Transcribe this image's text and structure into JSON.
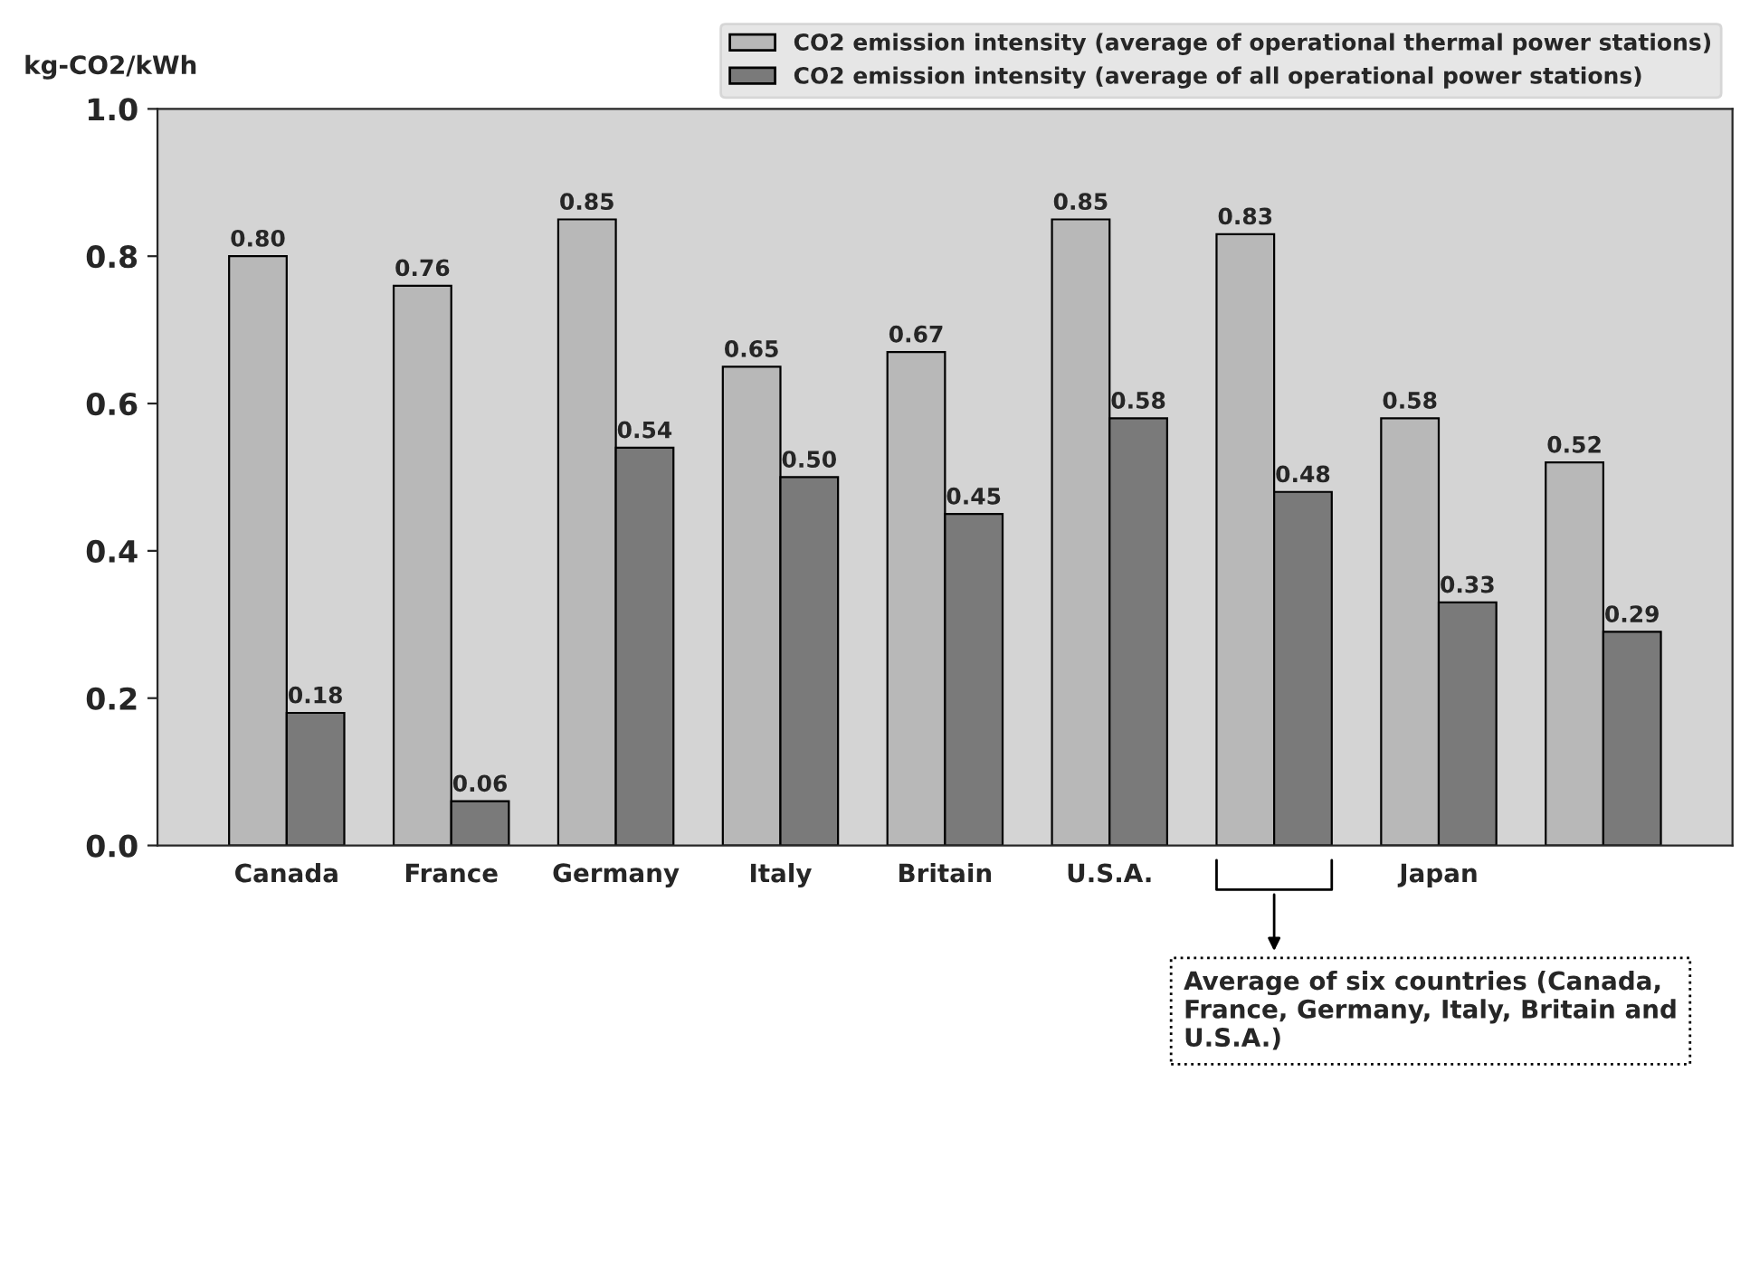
{
  "chart_data": {
    "type": "bar",
    "ylabel": "kg-CO2/kWh",
    "categories": [
      "Canada",
      "France",
      "Germany",
      "Italy",
      "Britain",
      "U.S.A.",
      null,
      "Japan",
      null
    ],
    "series": [
      {
        "name": "CO2 emission intensity (average of operational thermal power stations)",
        "color": "#b8b8b8",
        "values": [
          0.8,
          0.76,
          0.85,
          0.65,
          0.67,
          0.85,
          0.83,
          0.58,
          0.52
        ],
        "value_labels": [
          "0.80",
          "0.76",
          "0.85",
          "0.65",
          "0.67",
          "0.85",
          "0.83",
          "0.58",
          "0.52"
        ]
      },
      {
        "name": "CO2 emission intensity (average of all operational power stations)",
        "color": "#7a7a7a",
        "values": [
          0.18,
          0.06,
          0.54,
          0.5,
          0.45,
          0.58,
          0.48,
          0.33,
          0.29
        ],
        "value_labels": [
          "0.18",
          "0.06",
          "0.54",
          "0.50",
          "0.45",
          "0.58",
          "0.48",
          "0.33",
          "0.29"
        ]
      }
    ],
    "ylim": [
      0,
      1.0
    ],
    "yticks": [
      {
        "value": 0,
        "label": "0.0"
      },
      {
        "value": 0.2,
        "label": "0.2"
      },
      {
        "value": 0.4,
        "label": "0.4"
      },
      {
        "value": 0.6,
        "label": "0.6"
      },
      {
        "value": 0.8,
        "label": "0.8"
      },
      {
        "value": 1.0,
        "label": "1.0"
      }
    ],
    "grid": false,
    "legend": "top right",
    "annotations": [
      "Average of six countries (Canada, France, Germany, Italy, Britain and U.S.A.)"
    ]
  }
}
